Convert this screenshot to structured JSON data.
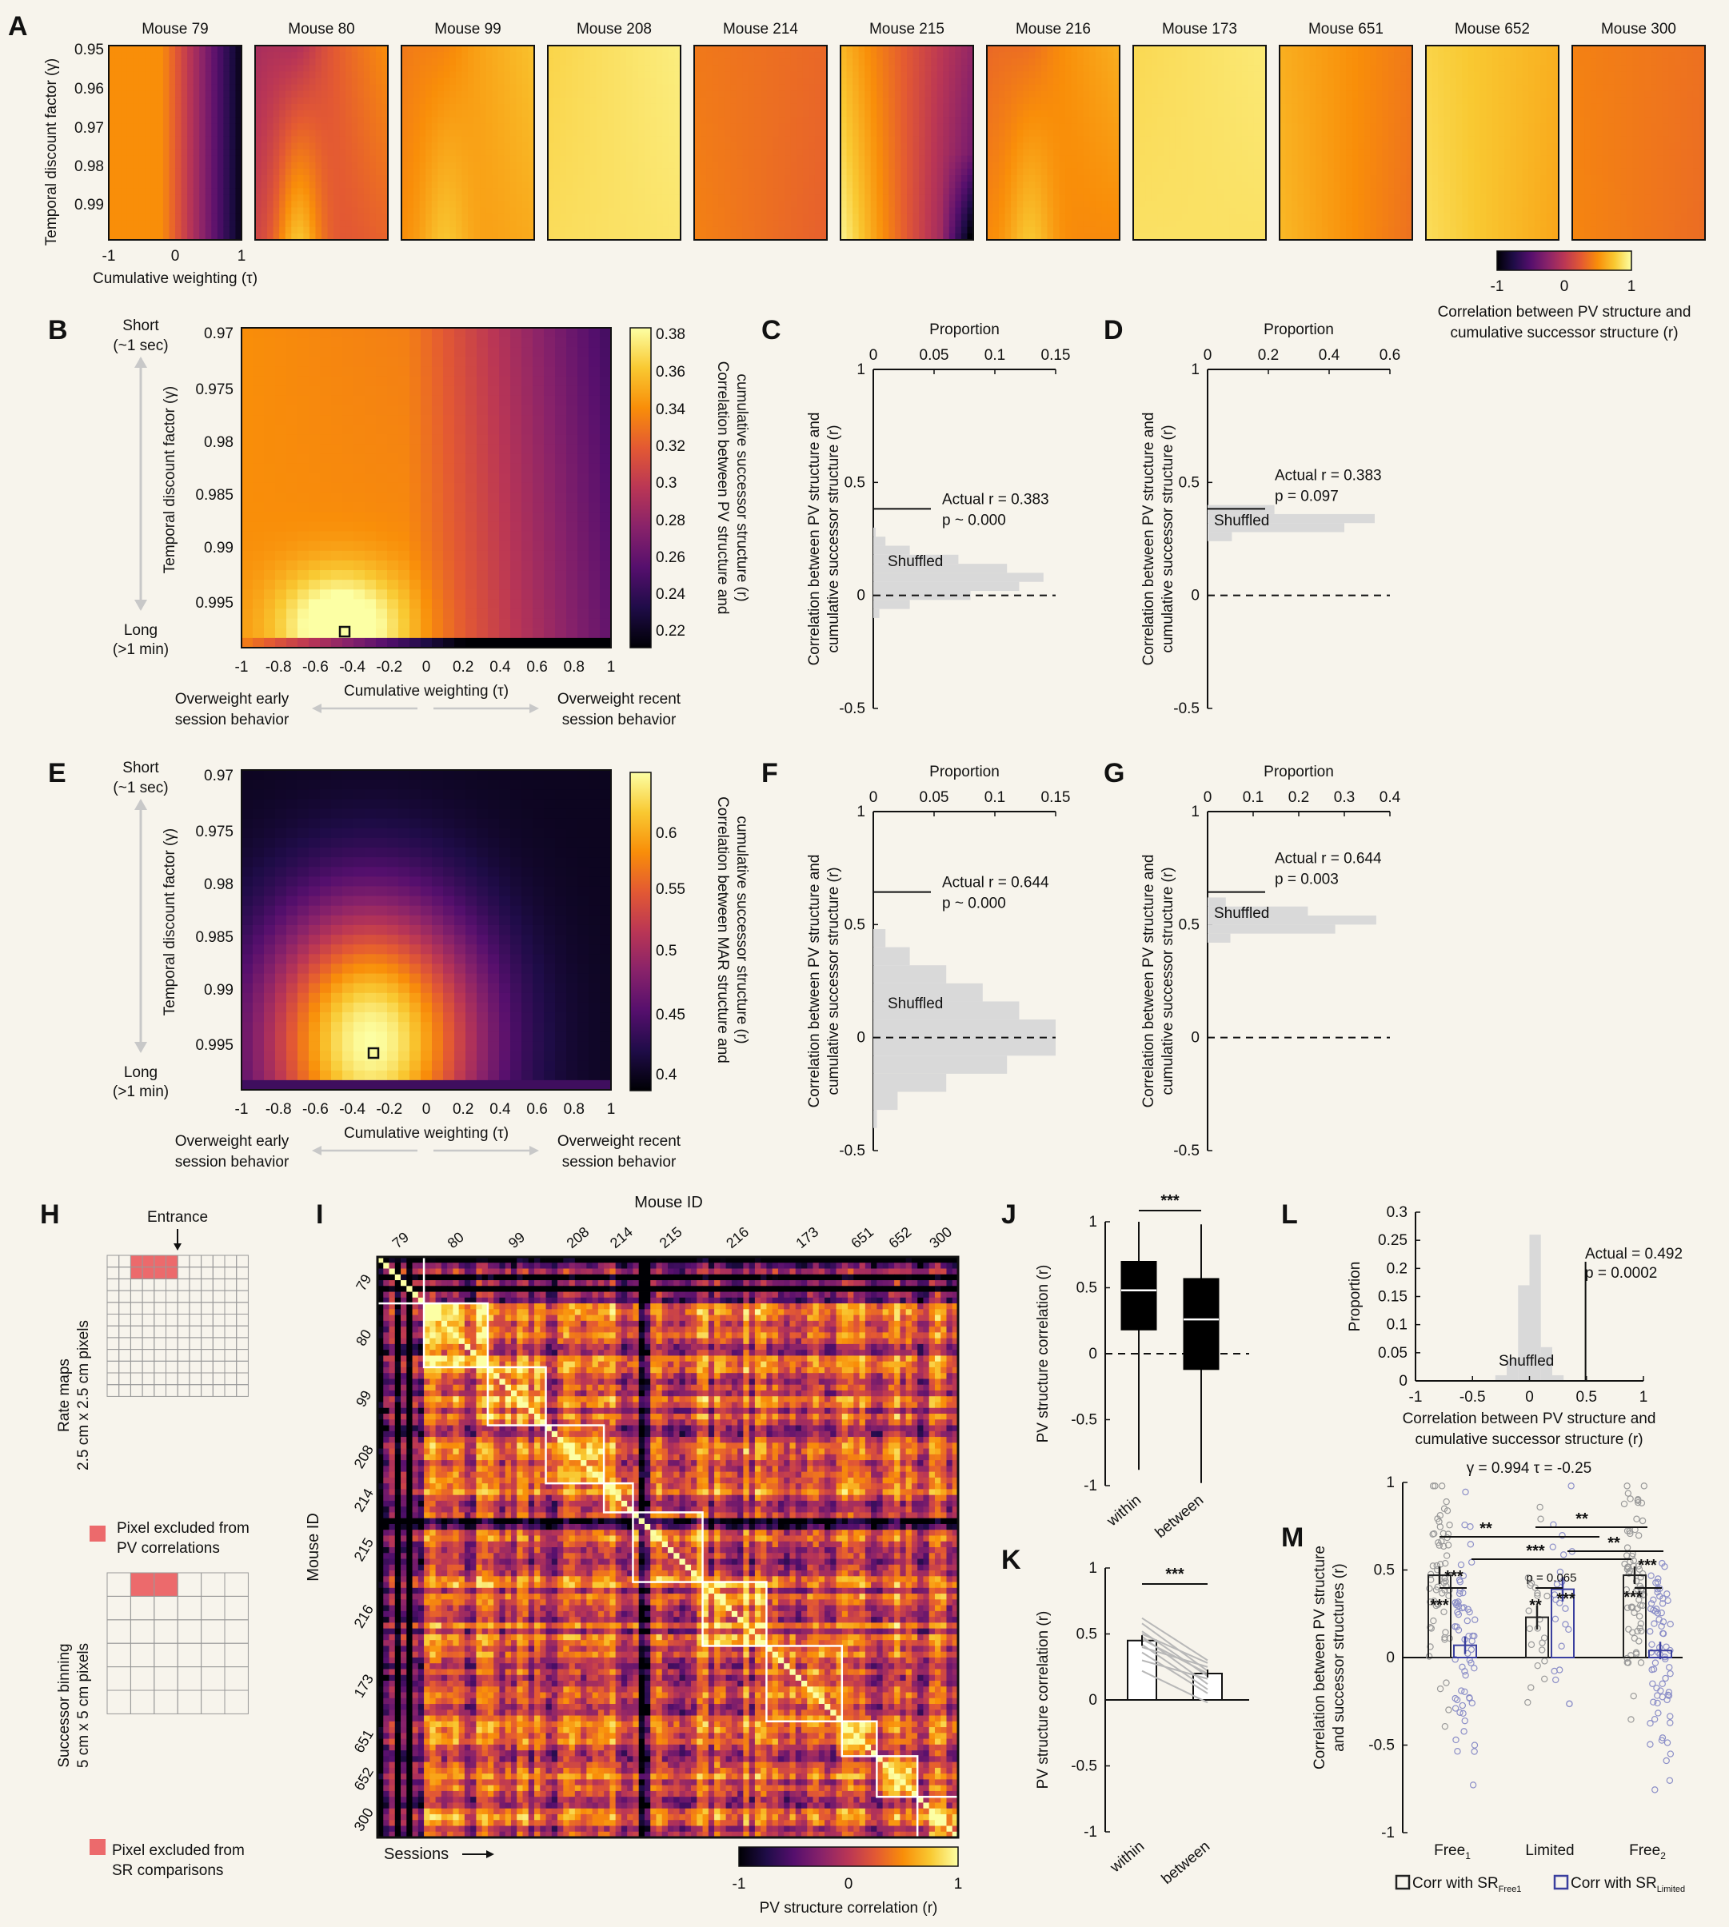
{
  "figure": {
    "panel_letters": [
      "A",
      "B",
      "C",
      "D",
      "E",
      "F",
      "G",
      "H",
      "I",
      "J",
      "K",
      "L",
      "M"
    ],
    "colormap_stops": [
      "#000004",
      "#1f0c48",
      "#550f6d",
      "#88226a",
      "#ba3655",
      "#e35933",
      "#f98e09",
      "#f9c932",
      "#fcffa4"
    ]
  },
  "panelA": {
    "mice": [
      "Mouse 79",
      "Mouse 80",
      "Mouse 99",
      "Mouse 208",
      "Mouse 214",
      "Mouse 215",
      "Mouse 216",
      "Mouse 173",
      "Mouse 651",
      "Mouse 652",
      "Mouse 300"
    ],
    "ylabel": "Temporal discount factor (γ)",
    "yticks": [
      "0.95",
      "0.96",
      "0.97",
      "0.98",
      "0.99"
    ],
    "xlabel": "Cumulative weighting (τ)",
    "xticks": [
      "-1",
      "0",
      "1"
    ],
    "cbar_ticks": [
      "-1",
      "0",
      "1"
    ],
    "cbar_label_1": "Correlation between PV structure and",
    "cbar_label_2": "cumulative successor structure (r)"
  },
  "panelB": {
    "left_top": "Short",
    "left_top2": "(~1 sec)",
    "left_bottom": "Long",
    "left_bottom2": "(>1 min)",
    "ylabel": "Temporal discount factor (γ)",
    "yticks": [
      "0.97",
      "0.975",
      "0.98",
      "0.985",
      "0.99",
      "0.995"
    ],
    "xticks": [
      "-1",
      "-0.8",
      "-0.6",
      "-0.4",
      "-0.2",
      "0",
      "0.2",
      "0.4",
      "0.6",
      "0.8",
      "1"
    ],
    "xlabel": "Cumulative weighting (τ)",
    "early_1": "Overweight early",
    "early_2": "session behavior",
    "recent_1": "Overweight recent",
    "recent_2": "session behavior",
    "cbar_ticks": [
      "0.38",
      "0.36",
      "0.34",
      "0.32",
      "0.3",
      "0.28",
      "0.26",
      "0.24",
      "0.22"
    ],
    "cbar_label_1": "Correlation between PV structure and",
    "cbar_label_2": "cumulative successor structure (r)"
  },
  "panelE": {
    "ylabel": "Temporal discount factor (γ)",
    "yticks": [
      "0.97",
      "0.975",
      "0.98",
      "0.985",
      "0.99",
      "0.995"
    ],
    "xticks": [
      "-1",
      "-0.8",
      "-0.6",
      "-0.4",
      "-0.2",
      "0",
      "0.2",
      "0.4",
      "0.6",
      "0.8",
      "1"
    ],
    "xlabel": "Cumulative weighting (τ)",
    "cbar_ticks": [
      "0.6",
      "0.55",
      "0.5",
      "0.45",
      "0.4"
    ],
    "cbar_label_1": "Correlation between MAR structure and",
    "cbar_label_2": "cumulative successor structure (r)"
  },
  "histPanels": {
    "top_label": "Proportion",
    "ylabel_1": "Correlation between PV structure and",
    "ylabel_2": "cumulative successor structure (r)",
    "yticks": [
      "1",
      "0.5",
      "0",
      "-0.5"
    ],
    "shuffled": "Shuffled",
    "C": {
      "xticks": [
        "0",
        "0.05",
        "0.1",
        "0.15"
      ],
      "actual": "Actual r = 0.383",
      "p": "p ~ 0.000"
    },
    "D": {
      "xticks": [
        "0",
        "0.2",
        "0.4",
        "0.6"
      ],
      "actual": "Actual r = 0.383",
      "p": "p = 0.097"
    },
    "F": {
      "xticks": [
        "0",
        "0.05",
        "0.1",
        "0.15"
      ],
      "actual": "Actual r = 0.644",
      "p": "p ~ 0.000"
    },
    "G": {
      "xticks": [
        "0",
        "0.1",
        "0.2",
        "0.3",
        "0.4"
      ],
      "actual": "Actual r = 0.644",
      "p": "p = 0.003"
    }
  },
  "panelH": {
    "entrance": "Entrance",
    "rate_1": "Rate maps",
    "rate_2": "2.5 cm x 2.5 cm pixels",
    "pv_excl_1": "Pixel excluded from",
    "pv_excl_2": "PV correlations",
    "succ_1": "Successor binning",
    "succ_2": "5 cm x 5 cm pixels",
    "sr_excl_1": "Pixel excluded from",
    "sr_excl_2": "SR comparisons"
  },
  "panelI": {
    "title": "Mouse ID",
    "ids": [
      "79",
      "80",
      "99",
      "208",
      "214",
      "215",
      "216",
      "173",
      "651",
      "652",
      "300"
    ],
    "ylabel": "Mouse ID",
    "sessions": "Sessions",
    "cbar_ticks": [
      "-1",
      "0",
      "1"
    ],
    "cbar_label": "PV structure correlation (r)"
  },
  "panelJ": {
    "ylabel": "PV structure correlation (r)",
    "yticks": [
      "1",
      "0.5",
      "0",
      "-0.5",
      "-1"
    ],
    "xticks": [
      "within",
      "between"
    ],
    "sig": "***"
  },
  "panelK": {
    "ylabel": "PV structure correlation (r)",
    "yticks": [
      "1",
      "0.5",
      "0",
      "-0.5",
      "-1"
    ],
    "xticks": [
      "within",
      "between"
    ],
    "sig": "***"
  },
  "panelL": {
    "ylabel": "Proportion",
    "yticks": [
      "0.3",
      "0.25",
      "0.2",
      "0.15",
      "0.1",
      "0.05",
      "0"
    ],
    "xticks": [
      "-1",
      "-0.5",
      "0",
      "0.5",
      "1"
    ],
    "xlabel_1": "Correlation between PV structure and",
    "xlabel_2": "cumulative successor structure (r)",
    "actual": "Actual = 0.492",
    "p": "p = 0.0002",
    "shuffled": "Shuffled",
    "params": "γ = 0.994    τ = -0.25"
  },
  "panelM": {
    "ylabel_1": "Correlation between PV structure",
    "ylabel_2": "and successor structures (r)",
    "yticks": [
      "1",
      "0.5",
      "0",
      "-0.5",
      "-1"
    ],
    "groups": [
      "Free",
      "Limited",
      "Free"
    ],
    "group_subs": [
      "1",
      "",
      "2"
    ],
    "sig_top_left": "**",
    "sig_top_right": "**",
    "sig_row2_left": "***",
    "sig_row2_right": "**",
    "sig_free1": "***",
    "sig_limited_p": "p = 0.065",
    "sig_free2": "***",
    "star_free1_a": "***",
    "star_limited_a": "**",
    "star_limited_b": "***",
    "star_free2_a": "***",
    "legend_black": "Corr with SR",
    "legend_black_sub": "Free1",
    "legend_blue": "Corr with SR",
    "legend_blue_sub": "Limited",
    "color_black": "#222222",
    "color_blue": "#3a3f9e"
  },
  "chart_data": [
    {
      "type": "heatmap",
      "panel": "B",
      "title": "",
      "xlabel": "Cumulative weighting (τ)",
      "ylabel": "Temporal discount factor (γ)",
      "xlim": [
        -1,
        1
      ],
      "ylim": [
        0.97,
        0.998
      ],
      "clim": [
        0.21,
        0.385
      ],
      "peak": {
        "tau": -0.45,
        "gamma": 0.9965,
        "r": 0.383
      }
    },
    {
      "type": "heatmap",
      "panel": "E",
      "title": "",
      "xlabel": "Cumulative weighting (τ)",
      "ylabel": "Temporal discount factor (γ)",
      "xlim": [
        -1,
        1
      ],
      "ylim": [
        0.97,
        0.998
      ],
      "clim": [
        0.38,
        0.645
      ],
      "peak": {
        "tau": -0.3,
        "gamma": 0.9945,
        "r": 0.644
      }
    },
    {
      "type": "bar",
      "panel": "C",
      "orientation": "horizontal",
      "bins": [
        0.28,
        0.24,
        0.2,
        0.16,
        0.12,
        0.08,
        0.04,
        0.0,
        -0.04,
        -0.08
      ],
      "values": [
        0.002,
        0.01,
        0.03,
        0.07,
        0.11,
        0.14,
        0.12,
        0.08,
        0.03,
        0.005
      ],
      "actual_r": 0.383,
      "xlim": [
        0,
        0.15
      ],
      "ylim": [
        -0.5,
        1
      ]
    },
    {
      "type": "bar",
      "panel": "D",
      "orientation": "horizontal",
      "bins": [
        0.38,
        0.34,
        0.3,
        0.26
      ],
      "values": [
        0.22,
        0.55,
        0.45,
        0.08
      ],
      "actual_r": 0.383,
      "xlim": [
        0,
        0.6
      ],
      "ylim": [
        -0.5,
        1
      ]
    },
    {
      "type": "bar",
      "panel": "F",
      "orientation": "horizontal",
      "bins": [
        0.44,
        0.36,
        0.28,
        0.2,
        0.12,
        0.04,
        -0.04,
        -0.12,
        -0.2,
        -0.28,
        -0.36
      ],
      "values": [
        0.01,
        0.03,
        0.06,
        0.09,
        0.12,
        0.15,
        0.15,
        0.11,
        0.06,
        0.02,
        0.003
      ],
      "actual_r": 0.644,
      "xlim": [
        0,
        0.15
      ],
      "ylim": [
        -0.5,
        1
      ]
    },
    {
      "type": "bar",
      "panel": "G",
      "orientation": "horizontal",
      "bins": [
        0.6,
        0.56,
        0.52,
        0.48,
        0.44
      ],
      "values": [
        0.04,
        0.22,
        0.37,
        0.28,
        0.05
      ],
      "actual_r": 0.644,
      "xlim": [
        0,
        0.4
      ],
      "ylim": [
        -0.5,
        1
      ]
    },
    {
      "type": "box",
      "panel": "J",
      "categories": [
        "within",
        "between"
      ],
      "boxes": [
        {
          "min": -0.88,
          "q1": 0.18,
          "median": 0.48,
          "q3": 0.7,
          "max": 1.0
        },
        {
          "min": -0.98,
          "q1": -0.12,
          "median": 0.26,
          "q3": 0.57,
          "max": 0.98
        }
      ],
      "ylim": [
        -1,
        1
      ]
    },
    {
      "type": "bar",
      "panel": "K",
      "categories": [
        "within",
        "between"
      ],
      "values": [
        0.45,
        0.2
      ],
      "errors": [
        0.04,
        0.03
      ],
      "paired_lines": [
        [
          0.62,
          0.3
        ],
        [
          0.58,
          0.22
        ],
        [
          0.52,
          0.18
        ],
        [
          0.5,
          0.28
        ],
        [
          0.48,
          0.12
        ],
        [
          0.46,
          0.2
        ],
        [
          0.42,
          0.08
        ],
        [
          0.4,
          0.25
        ],
        [
          0.36,
          0.05
        ],
        [
          0.3,
          0.16
        ],
        [
          0.22,
          -0.02
        ]
      ],
      "ylim": [
        -1,
        1
      ]
    },
    {
      "type": "bar",
      "panel": "L",
      "bins": [
        -0.25,
        -0.15,
        -0.05,
        0.05,
        0.15,
        0.25
      ],
      "values": [
        0.01,
        0.04,
        0.17,
        0.26,
        0.06,
        0.01
      ],
      "actual": 0.492,
      "xlim": [
        -1,
        1
      ],
      "ylim": [
        0,
        0.3
      ]
    },
    {
      "type": "bar",
      "panel": "M",
      "categories": [
        "Free1",
        "Limited",
        "Free2"
      ],
      "series": [
        {
          "name": "Corr with SRFree1",
          "values": [
            0.47,
            0.23,
            0.47
          ],
          "errors": [
            0.05,
            0.07,
            0.05
          ]
        },
        {
          "name": "Corr with SRLimited",
          "values": [
            0.07,
            0.39,
            0.04
          ],
          "errors": [
            0.05,
            0.07,
            0.05
          ]
        }
      ],
      "ylim": [
        -1,
        1
      ]
    }
  ]
}
